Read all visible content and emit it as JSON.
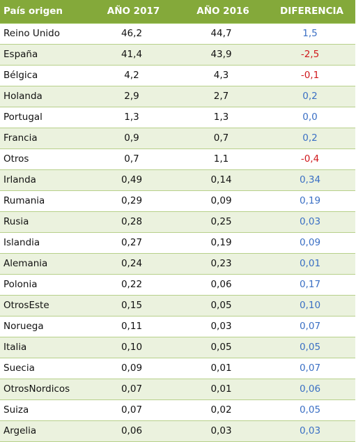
{
  "header": {
    "country": "País origen",
    "y2017": "AÑO 2017",
    "y2016": "AÑO 2016",
    "diff": "DIFERENCIA"
  },
  "colors": {
    "header_bg": "#84a93a",
    "row_alt_bg": "#ebf2de",
    "positive": "#3a6fc4",
    "negative": "#d0181c"
  },
  "rows": [
    {
      "country": "Reino Unido",
      "y2017": "46,2",
      "y2016": "44,7",
      "diff": "1,5",
      "sign": "pos"
    },
    {
      "country": "España",
      "y2017": "41,4",
      "y2016": "43,9",
      "diff": "-2,5",
      "sign": "neg"
    },
    {
      "country": "Bélgica",
      "y2017": "4,2",
      "y2016": "4,3",
      "diff": "-0,1",
      "sign": "neg"
    },
    {
      "country": "Holanda",
      "y2017": "2,9",
      "y2016": "2,7",
      "diff": "0,2",
      "sign": "pos"
    },
    {
      "country": "Portugal",
      "y2017": "1,3",
      "y2016": "1,3",
      "diff": "0,0",
      "sign": "pos"
    },
    {
      "country": "Francia",
      "y2017": "0,9",
      "y2016": "0,7",
      "diff": "0,2",
      "sign": "pos"
    },
    {
      "country": "Otros",
      "y2017": "0,7",
      "y2016": "1,1",
      "diff": "-0,4",
      "sign": "neg"
    },
    {
      "country": "Irlanda",
      "y2017": "0,49",
      "y2016": "0,14",
      "diff": "0,34",
      "sign": "pos"
    },
    {
      "country": "Rumania",
      "y2017": "0,29",
      "y2016": "0,09",
      "diff": "0,19",
      "sign": "pos"
    },
    {
      "country": "Rusia",
      "y2017": "0,28",
      "y2016": "0,25",
      "diff": "0,03",
      "sign": "pos"
    },
    {
      "country": "Islandia",
      "y2017": "0,27",
      "y2016": "0,19",
      "diff": "0,09",
      "sign": "pos"
    },
    {
      "country": "Alemania",
      "y2017": "0,24",
      "y2016": "0,23",
      "diff": "0,01",
      "sign": "pos"
    },
    {
      "country": "Polonia",
      "y2017": "0,22",
      "y2016": "0,06",
      "diff": "0,17",
      "sign": "pos"
    },
    {
      "country": "OtrosEste",
      "y2017": "0,15",
      "y2016": "0,05",
      "diff": "0,10",
      "sign": "pos"
    },
    {
      "country": "Noruega",
      "y2017": "0,11",
      "y2016": "0,03",
      "diff": "0,07",
      "sign": "pos"
    },
    {
      "country": "Italia",
      "y2017": "0,10",
      "y2016": "0,05",
      "diff": "0,05",
      "sign": "pos"
    },
    {
      "country": "Suecia",
      "y2017": "0,09",
      "y2016": "0,01",
      "diff": "0,07",
      "sign": "pos"
    },
    {
      "country": "OtrosNordicos",
      "y2017": "0,07",
      "y2016": "0,01",
      "diff": "0,06",
      "sign": "pos"
    },
    {
      "country": "Suiza",
      "y2017": "0,07",
      "y2016": "0,02",
      "diff": "0,05",
      "sign": "pos"
    },
    {
      "country": "Argelia",
      "y2017": "0,06",
      "y2016": "0,03",
      "diff": "0,03",
      "sign": "pos"
    }
  ]
}
